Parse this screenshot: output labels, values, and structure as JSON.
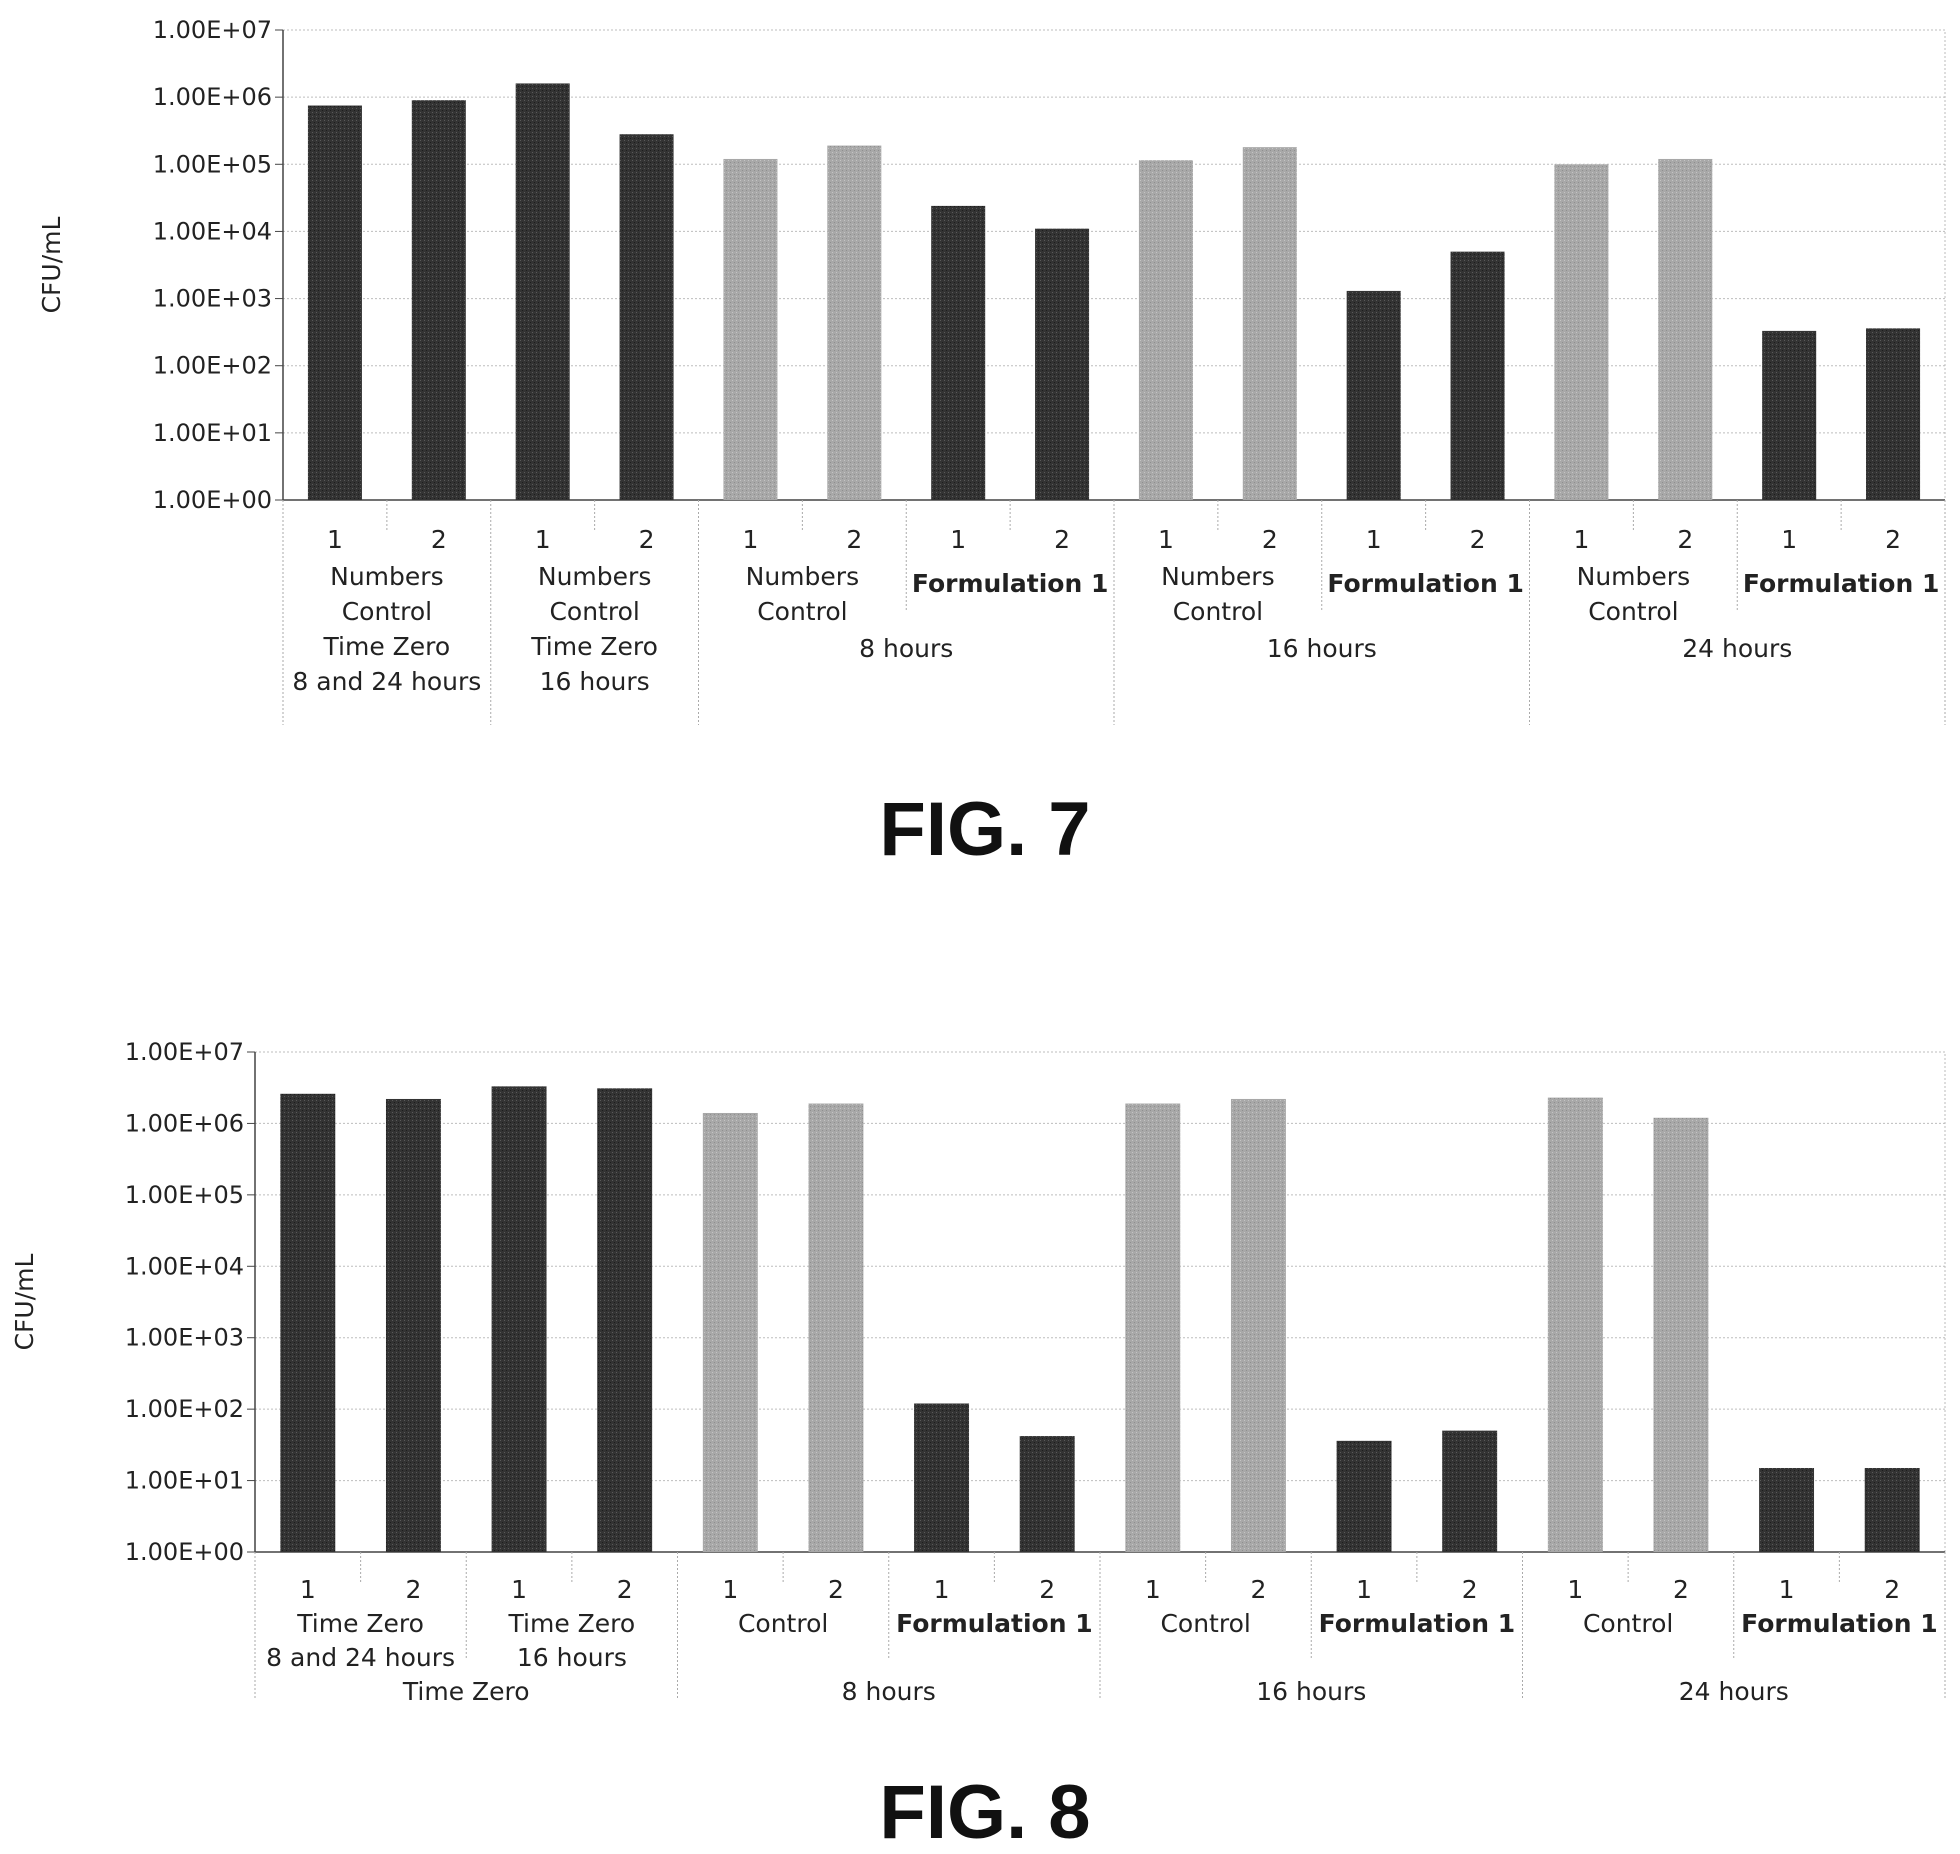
{
  "chart_data": [
    {
      "type": "bar",
      "caption": "FIG. 7",
      "ylabel": "CFU/mL",
      "yscale": "log",
      "ylim": [
        1,
        10000000
      ],
      "y_ticks": [
        "1.00E+00",
        "1.00E+01",
        "1.00E+02",
        "1.00E+03",
        "1.00E+04",
        "1.00E+05",
        "1.00E+06",
        "1.00E+07"
      ],
      "grid": true,
      "colors": {
        "dark": "#333333",
        "light": "#a8a8a8"
      },
      "bars": [
        {
          "label": "1",
          "value": 750000,
          "shade": "dark"
        },
        {
          "label": "2",
          "value": 900000,
          "shade": "dark"
        },
        {
          "label": "1",
          "value": 1600000,
          "shade": "dark"
        },
        {
          "label": "2",
          "value": 280000,
          "shade": "dark"
        },
        {
          "label": "1",
          "value": 120000,
          "shade": "light"
        },
        {
          "label": "2",
          "value": 190000,
          "shade": "light"
        },
        {
          "label": "1",
          "value": 24000,
          "shade": "dark"
        },
        {
          "label": "2",
          "value": 11000,
          "shade": "dark"
        },
        {
          "label": "1",
          "value": 115000,
          "shade": "light"
        },
        {
          "label": "2",
          "value": 180000,
          "shade": "light"
        },
        {
          "label": "1",
          "value": 1300,
          "shade": "dark"
        },
        {
          "label": "2",
          "value": 5000,
          "shade": "dark"
        },
        {
          "label": "1",
          "value": 100000,
          "shade": "light"
        },
        {
          "label": "2",
          "value": 120000,
          "shade": "light"
        },
        {
          "label": "1",
          "value": 330,
          "shade": "dark"
        },
        {
          "label": "2",
          "value": 360,
          "shade": "dark"
        }
      ],
      "groups": [
        {
          "lines": [
            "Numbers",
            "Control",
            "Time Zero",
            "8 and 24 hours"
          ],
          "bold": false
        },
        {
          "lines": [
            "Numbers",
            "Control",
            "Time Zero",
            "16 hours"
          ],
          "bold": false
        },
        {
          "lines": [
            "Numbers",
            "Control"
          ],
          "bold": false
        },
        {
          "lines": [
            "Formulation 1"
          ],
          "bold": true
        },
        {
          "lines": [
            "Numbers",
            "Control"
          ],
          "bold": false
        },
        {
          "lines": [
            "Formulation 1"
          ],
          "bold": true
        },
        {
          "lines": [
            "Numbers",
            "Control"
          ],
          "bold": false
        },
        {
          "lines": [
            "Formulation 1"
          ],
          "bold": true
        }
      ],
      "time_groups": [
        "8 hours",
        "16 hours",
        "24 hours"
      ]
    },
    {
      "type": "bar",
      "caption": "FIG. 8",
      "ylabel": "CFU/mL",
      "yscale": "log",
      "ylim": [
        1,
        10000000
      ],
      "y_ticks": [
        "1.00E+00",
        "1.00E+01",
        "1.00E+02",
        "1.00E+03",
        "1.00E+04",
        "1.00E+05",
        "1.00E+06",
        "1.00E+07"
      ],
      "grid": true,
      "colors": {
        "dark": "#333333",
        "light": "#a8a8a8"
      },
      "bars": [
        {
          "label": "1",
          "value": 2600000,
          "shade": "dark"
        },
        {
          "label": "2",
          "value": 2200000,
          "shade": "dark"
        },
        {
          "label": "1",
          "value": 3300000,
          "shade": "dark"
        },
        {
          "label": "2",
          "value": 3100000,
          "shade": "dark"
        },
        {
          "label": "1",
          "value": 1400000,
          "shade": "light"
        },
        {
          "label": "2",
          "value": 1900000,
          "shade": "light"
        },
        {
          "label": "1",
          "value": 120,
          "shade": "dark"
        },
        {
          "label": "2",
          "value": 42,
          "shade": "dark"
        },
        {
          "label": "1",
          "value": 1900000,
          "shade": "light"
        },
        {
          "label": "2",
          "value": 2200000,
          "shade": "light"
        },
        {
          "label": "1",
          "value": 36,
          "shade": "dark"
        },
        {
          "label": "2",
          "value": 50,
          "shade": "dark"
        },
        {
          "label": "1",
          "value": 2300000,
          "shade": "light"
        },
        {
          "label": "2",
          "value": 1200000,
          "shade": "light"
        },
        {
          "label": "1",
          "value": 15,
          "shade": "dark"
        },
        {
          "label": "2",
          "value": 15,
          "shade": "dark"
        }
      ],
      "groups": [
        {
          "lines": [
            "Time Zero",
            "8 and 24 hours"
          ],
          "bold": false
        },
        {
          "lines": [
            "Time Zero",
            "16 hours"
          ],
          "bold": false
        },
        {
          "lines": [
            "Control"
          ],
          "bold": false
        },
        {
          "lines": [
            "Formulation 1"
          ],
          "bold": true
        },
        {
          "lines": [
            "Control"
          ],
          "bold": false
        },
        {
          "lines": [
            "Formulation 1"
          ],
          "bold": true
        },
        {
          "lines": [
            "Control"
          ],
          "bold": false
        },
        {
          "lines": [
            "Formulation 1"
          ],
          "bold": true
        }
      ],
      "time_groups": [
        "Time Zero",
        "8 hours",
        "16 hours",
        "24 hours"
      ]
    }
  ]
}
